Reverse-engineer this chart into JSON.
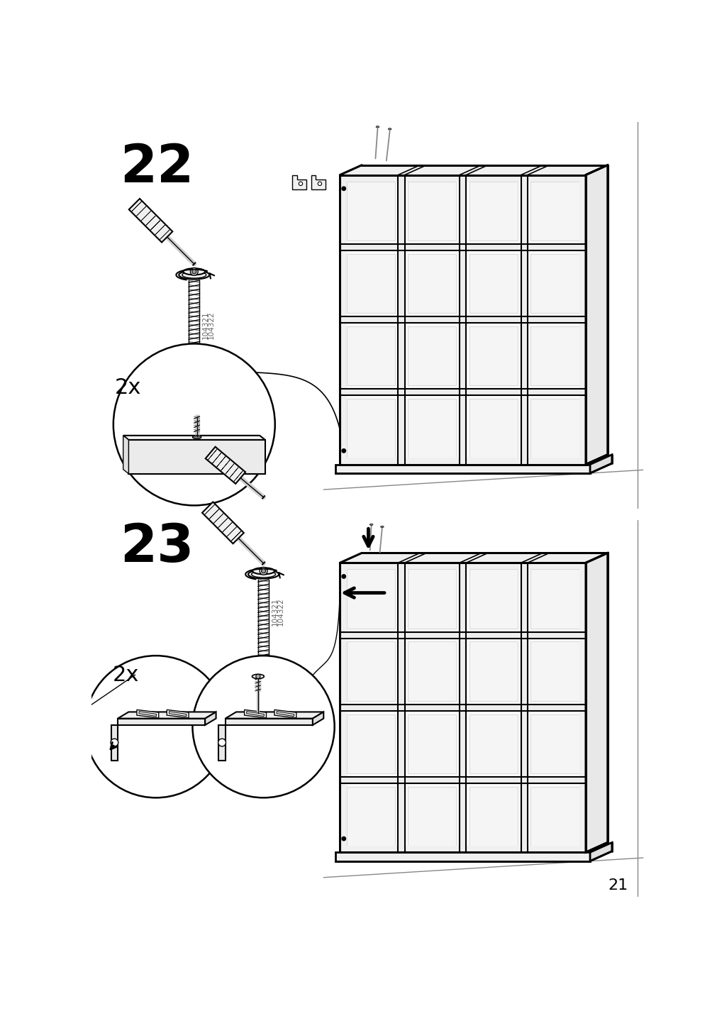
{
  "page_num": "21",
  "step22": "22",
  "step23": "23",
  "part_code1": "104321",
  "part_code2": "104322",
  "bg_color": "#ffffff",
  "lc": "#000000",
  "gray": "#888888",
  "light_gray": "#cccccc",
  "figsize": [
    10.12,
    14.32
  ],
  "dpi": 100
}
